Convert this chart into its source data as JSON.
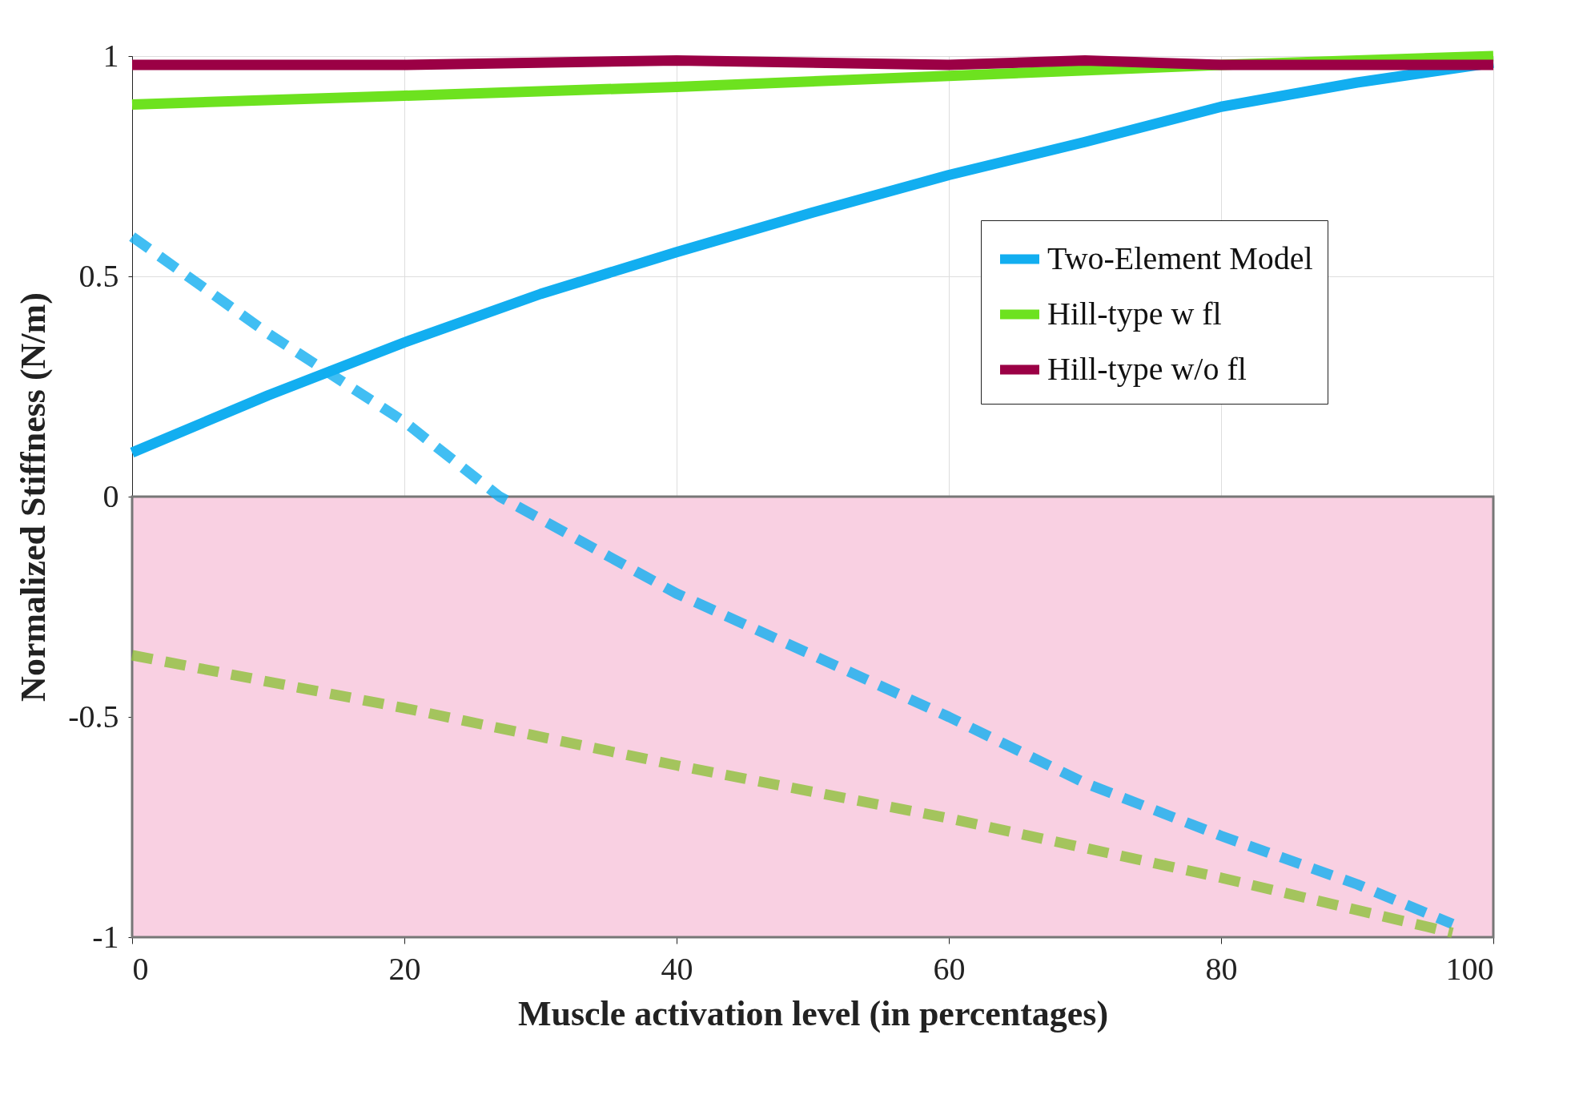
{
  "chart_data": {
    "type": "line",
    "xlabel": "Muscle activation level (in percentages)",
    "ylabel": "Normalized Stiffness (N/m)",
    "xlim": [
      0,
      100
    ],
    "xticks": [
      0,
      20,
      40,
      60,
      80,
      100
    ],
    "ylim": [
      -1,
      1
    ],
    "yticks": [
      -1,
      -0.5,
      0,
      0.5,
      1
    ],
    "grid": true,
    "legend": "top right",
    "series": [
      {
        "name": "Two-Element Model",
        "color": "#12aef0",
        "line_style": "solid",
        "x": [
          0,
          10,
          20,
          30,
          40,
          50,
          60,
          70,
          80,
          90,
          100
        ],
        "values": [
          0.1,
          0.23,
          0.35,
          0.46,
          0.555,
          0.645,
          0.73,
          0.805,
          0.885,
          0.94,
          0.985
        ]
      },
      {
        "name": "Hill-type w fl",
        "color": "#6de21f",
        "line_style": "solid",
        "x": [
          0,
          20,
          40,
          60,
          80,
          100
        ],
        "values": [
          0.89,
          0.91,
          0.93,
          0.955,
          0.98,
          1.0
        ]
      },
      {
        "name": "Hill-type w/o fl",
        "color": "#9b0045",
        "line_style": "solid",
        "x": [
          0,
          20,
          40,
          60,
          70,
          80,
          100
        ],
        "values": [
          0.98,
          0.98,
          0.99,
          0.98,
          0.99,
          0.98,
          0.98
        ]
      },
      {
        "color": "#12aef0",
        "line_style": "dashed",
        "x": [
          0,
          10,
          20,
          27,
          40,
          50,
          60,
          70,
          80,
          90,
          97
        ],
        "values": [
          0.59,
          0.37,
          0.17,
          0,
          -0.22,
          -0.36,
          -0.5,
          -0.65,
          -0.77,
          -0.88,
          -0.97
        ]
      },
      {
        "color": "#8fc03c",
        "line_style": "dashed",
        "x": [
          0,
          20,
          40,
          60,
          80,
          97
        ],
        "values": [
          -0.36,
          -0.48,
          -0.61,
          -0.73,
          -0.865,
          -0.99
        ]
      }
    ],
    "bands": [
      {
        "axis": "y",
        "from": -1,
        "to": 0,
        "color": "#f9d0e2"
      }
    ]
  }
}
